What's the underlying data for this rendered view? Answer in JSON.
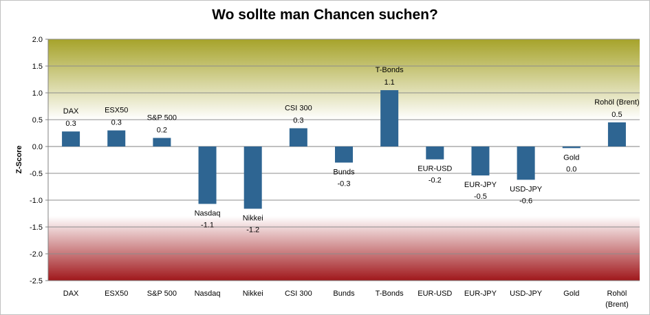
{
  "chart_data": {
    "type": "bar",
    "title": "Wo sollte man Chancen suchen?",
    "ylabel": "Z-Score",
    "xlabel": "",
    "ylim": [
      -2.5,
      2.0
    ],
    "yticks": [
      2.0,
      1.5,
      1.0,
      0.5,
      0.0,
      -0.5,
      -1.0,
      -1.5,
      -2.0,
      -2.5
    ],
    "categories": [
      "DAX",
      "ESX50",
      "S&P 500",
      "Nasdaq",
      "Nikkei",
      "CSI 300",
      "Bunds",
      "T-Bonds",
      "EUR-USD",
      "EUR-JPY",
      "USD-JPY",
      "Gold",
      "Rohöl (Brent)"
    ],
    "values": [
      0.28,
      0.3,
      0.16,
      -1.07,
      -1.16,
      0.34,
      -0.3,
      1.05,
      -0.24,
      -0.54,
      -0.62,
      -0.03,
      0.45
    ],
    "data_labels": [
      "0.3",
      "0.3",
      "0.2",
      "-1.1",
      "-1.2",
      "0.3",
      "-0.3",
      "1.1",
      "-0.2",
      "-0.5",
      "-0.6",
      "0.0",
      "0.5"
    ],
    "bar_color": "#2e6592",
    "background_zones": {
      "positive_color": "#a6a32a",
      "negative_color": "#a0171b"
    },
    "grid": true,
    "legend": "none"
  }
}
